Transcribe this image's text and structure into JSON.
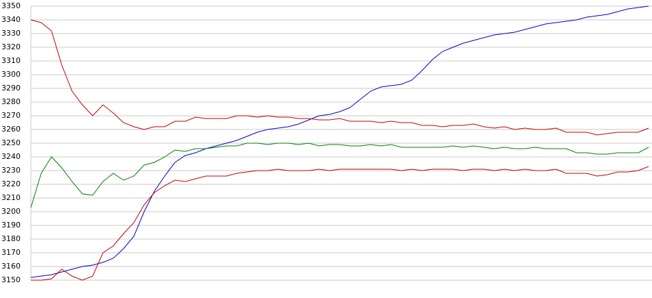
{
  "chart_data": {
    "type": "line",
    "ylim": [
      3150,
      3350
    ],
    "yticks": [
      3150,
      3160,
      3170,
      3180,
      3190,
      3200,
      3210,
      3220,
      3230,
      3240,
      3250,
      3260,
      3270,
      3280,
      3290,
      3300,
      3310,
      3320,
      3330,
      3340,
      3350
    ],
    "grid": true,
    "series": [
      {
        "color": "#0000cc",
        "values": [
          3152,
          3153,
          3154,
          3156,
          3158,
          3160,
          3161,
          3163,
          3166,
          3173,
          3182,
          3200,
          3215,
          3226,
          3236,
          3241,
          3243,
          3246,
          3248,
          3250,
          3252,
          3255,
          3258,
          3260,
          3261,
          3262,
          3264,
          3267,
          3270,
          3271,
          3273,
          3276,
          3282,
          3288,
          3291,
          3292,
          3293,
          3296,
          3303,
          3311,
          3317,
          3320,
          3323,
          3325,
          3327,
          3329,
          3330,
          3331,
          3333,
          3335,
          3337,
          3338,
          3339,
          3340,
          3342,
          3343,
          3344,
          3346,
          3348,
          3349,
          3350
        ]
      },
      {
        "color": "#c00000",
        "values": [
          3340,
          3338,
          3332,
          3307,
          3288,
          3278,
          3270,
          3278,
          3272,
          3265,
          3262,
          3260,
          3262,
          3262,
          3266,
          3266,
          3269,
          3268,
          3268,
          3268,
          3270,
          3270,
          3269,
          3270,
          3269,
          3269,
          3268,
          3268,
          3267,
          3267,
          3268,
          3266,
          3266,
          3266,
          3265,
          3266,
          3265,
          3265,
          3263,
          3263,
          3262,
          3263,
          3263,
          3264,
          3262,
          3261,
          3262,
          3260,
          3261,
          3260,
          3260,
          3261,
          3258,
          3258,
          3258,
          3256,
          3257,
          3258,
          3258,
          3258,
          3261
        ]
      },
      {
        "color": "#008000",
        "values": [
          3203,
          3228,
          3240,
          3232,
          3222,
          3213,
          3212,
          3222,
          3228,
          3223,
          3226,
          3234,
          3236,
          3240,
          3245,
          3244,
          3246,
          3246,
          3247,
          3248,
          3248,
          3250,
          3250,
          3249,
          3250,
          3250,
          3249,
          3250,
          3248,
          3249,
          3249,
          3248,
          3248,
          3249,
          3248,
          3249,
          3247,
          3247,
          3247,
          3247,
          3247,
          3248,
          3247,
          3248,
          3247,
          3246,
          3247,
          3246,
          3246,
          3247,
          3246,
          3246,
          3246,
          3243,
          3243,
          3242,
          3242,
          3243,
          3243,
          3243,
          3247
        ]
      },
      {
        "color": "#c00000",
        "values": [
          3150,
          3150,
          3151,
          3158,
          3153,
          3150,
          3153,
          3170,
          3175,
          3184,
          3192,
          3205,
          3214,
          3219,
          3223,
          3222,
          3224,
          3226,
          3226,
          3226,
          3228,
          3229,
          3230,
          3230,
          3231,
          3230,
          3230,
          3230,
          3231,
          3230,
          3231,
          3231,
          3231,
          3231,
          3231,
          3231,
          3230,
          3231,
          3230,
          3231,
          3231,
          3231,
          3230,
          3231,
          3231,
          3230,
          3231,
          3230,
          3231,
          3230,
          3230,
          3231,
          3228,
          3228,
          3228,
          3226,
          3227,
          3229,
          3229,
          3230,
          3233
        ]
      }
    ]
  }
}
